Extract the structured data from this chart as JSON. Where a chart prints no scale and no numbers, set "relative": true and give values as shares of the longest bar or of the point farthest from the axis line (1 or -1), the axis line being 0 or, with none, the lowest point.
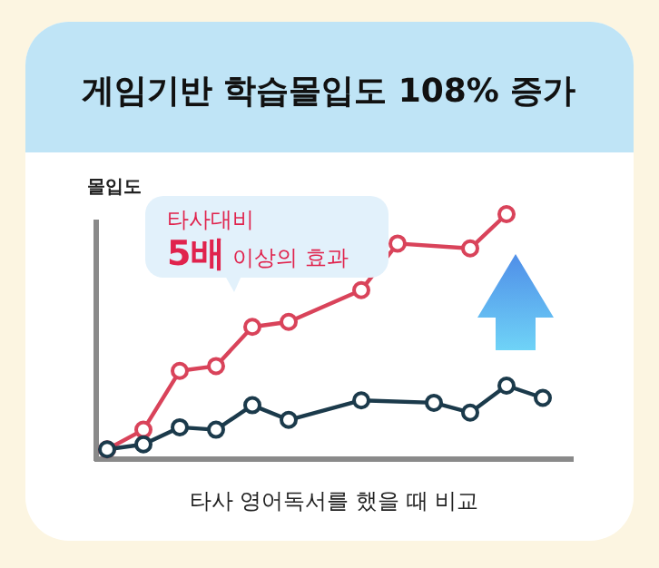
{
  "chart_data": {
    "type": "line",
    "title": "게임기반 학습몰입도 108% 증가",
    "ylabel": "몰입도",
    "xlabel": "타사 영어독서를 했을 때 비교",
    "annotations": [
      "타사대비\n5배 이상의 효과"
    ],
    "relative": true,
    "marker": "circle",
    "line_style": "solid",
    "categories": [
      null,
      null,
      null,
      null,
      null,
      null,
      null,
      null,
      null,
      null,
      null,
      null,
      null
    ],
    "series": [
      {
        "color": "#d9435a",
        "values": [
          0.04,
          0.12,
          0.36,
          0.38,
          0.54,
          0.56,
          null,
          0.69,
          0.88,
          null,
          0.86,
          1.0,
          null
        ]
      },
      {
        "color": "#1b3a4b",
        "values": [
          0.04,
          0.06,
          0.13,
          0.12,
          0.22,
          0.16,
          null,
          0.24,
          null,
          0.23,
          0.19,
          0.3,
          0.25
        ]
      }
    ]
  }
}
